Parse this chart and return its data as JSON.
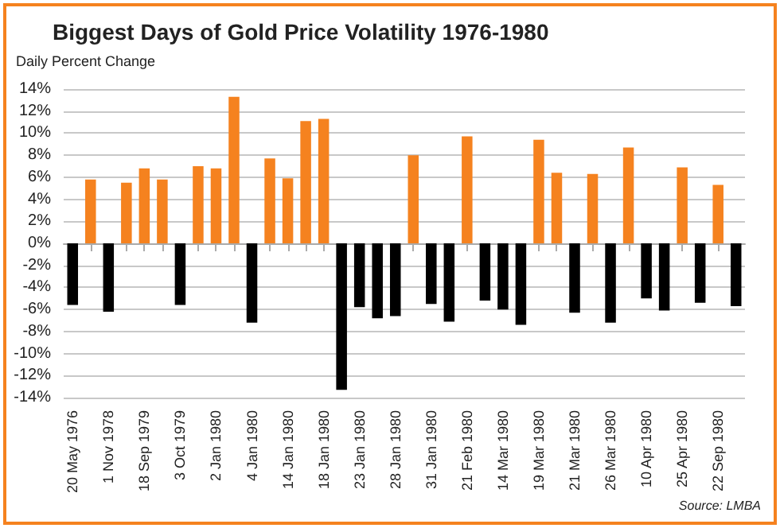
{
  "chart_data": {
    "type": "bar",
    "title": "Biggest Days of Gold Price Volatility 1976-1980",
    "ylabel": "Daily Percent Change",
    "categories": [
      "20 May 1976",
      null,
      "1 Nov 1978",
      null,
      "18 Sep 1979",
      null,
      "3 Oct 1979",
      null,
      "2 Jan 1980",
      null,
      "4 Jan 1980",
      null,
      "14 Jan 1980",
      null,
      "18 Jan 1980",
      null,
      "23 Jan 1980",
      null,
      "28 Jan 1980",
      null,
      "31 Jan 1980",
      null,
      "21 Feb 1980",
      null,
      "14 Mar 1980",
      null,
      "19 Mar 1980",
      null,
      "21 Mar 1980",
      null,
      "26 Mar 1980",
      null,
      "10 Apr 1980",
      null,
      "25 Apr 1980",
      null,
      "22 Sep 1980",
      null
    ],
    "values": [
      -5.6,
      5.8,
      -6.2,
      5.5,
      6.8,
      5.8,
      -5.6,
      7.0,
      6.8,
      13.3,
      -7.2,
      7.7,
      5.9,
      11.1,
      11.3,
      -13.3,
      -5.8,
      -6.8,
      -6.6,
      8.0,
      -5.5,
      -7.1,
      9.7,
      -5.2,
      -6.0,
      -7.4,
      9.4,
      6.4,
      -6.3,
      6.3,
      -7.2,
      8.7,
      -5.0,
      -6.1,
      6.9,
      -5.4,
      5.3,
      -5.7
    ],
    "colors": [
      "#000000",
      "#f5821f",
      "#000000",
      "#f5821f",
      "#f5821f",
      "#f5821f",
      "#000000",
      "#f5821f",
      "#f5821f",
      "#f5821f",
      "#000000",
      "#f5821f",
      "#f5821f",
      "#f5821f",
      "#f5821f",
      "#000000",
      "#000000",
      "#000000",
      "#000000",
      "#f5821f",
      "#000000",
      "#000000",
      "#f5821f",
      "#000000",
      "#000000",
      "#000000",
      "#f5821f",
      "#f5821f",
      "#000000",
      "#f5821f",
      "#000000",
      "#f5821f",
      "#000000",
      "#000000",
      "#f5821f",
      "#000000",
      "#f5821f",
      "#000000"
    ],
    "ylim": [
      -14,
      14
    ],
    "yticks": [
      {
        "value": -14,
        "label": "-14%"
      },
      {
        "value": -12,
        "label": "-12%"
      },
      {
        "value": -10,
        "label": "-10%"
      },
      {
        "value": -8,
        "label": "-8%"
      },
      {
        "value": -6,
        "label": "-6%"
      },
      {
        "value": -4,
        "label": "-4%"
      },
      {
        "value": -2,
        "label": "-2%"
      },
      {
        "value": 0,
        "label": "0%"
      },
      {
        "value": 2,
        "label": "2%"
      },
      {
        "value": 4,
        "label": "4%"
      },
      {
        "value": 6,
        "label": "6%"
      },
      {
        "value": 8,
        "label": "8%"
      },
      {
        "value": 10,
        "label": "10%"
      },
      {
        "value": 12,
        "label": "12%"
      },
      {
        "value": 14,
        "label": "14%"
      }
    ],
    "grid": "y",
    "annotations": [
      "Source: LMBA"
    ]
  }
}
